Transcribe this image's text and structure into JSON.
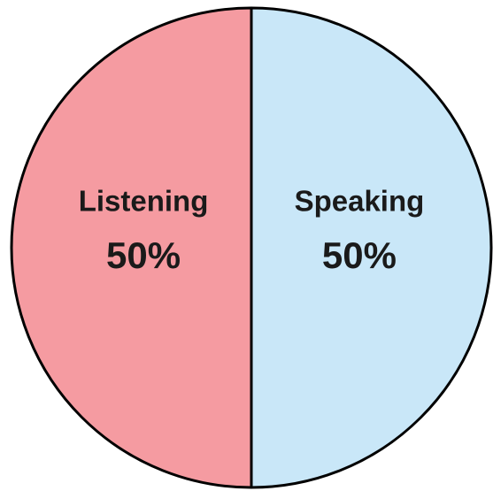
{
  "chart_data": {
    "type": "pie",
    "categories": [
      "Speaking",
      "Listening"
    ],
    "values": [
      50,
      50
    ],
    "value_labels": [
      "50%",
      "50%"
    ],
    "colors": [
      "#c9e7f8",
      "#f59ba1"
    ]
  }
}
